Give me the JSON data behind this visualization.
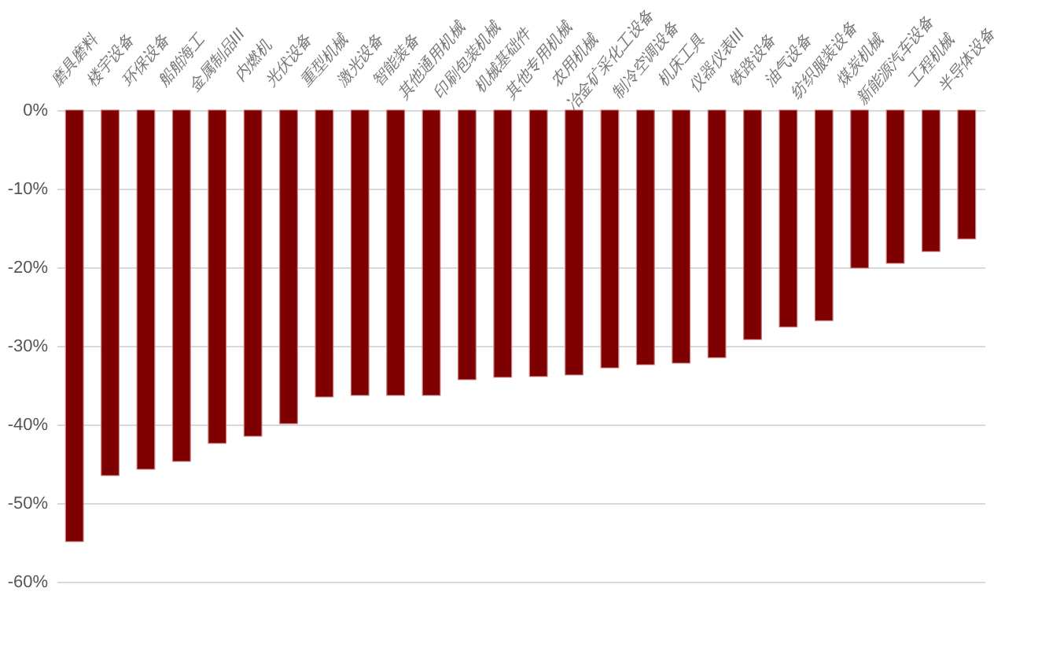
{
  "chart_data": {
    "type": "bar",
    "categories": [
      "磨具磨料",
      "楼宇设备",
      "环保设备",
      "船舶海工",
      "金属制品III",
      "内燃机",
      "光伏设备",
      "重型机械",
      "激光设备",
      "智能装备",
      "其他通用机械",
      "印刷包装机械",
      "机械基础件",
      "其他专用机械",
      "农用机械",
      "冶金矿采化工设备",
      "制冷空调设备",
      "机床工具",
      "仪器仪表III",
      "铁路设备",
      "油气设备",
      "纺织服装设备",
      "煤炭机械",
      "新能源汽车设备",
      "工程机械",
      "半导体设备"
    ],
    "values": [
      -54.9,
      -46.5,
      -45.7,
      -44.7,
      -42.4,
      -41.5,
      -39.9,
      -36.5,
      -36.3,
      -36.3,
      -36.3,
      -34.3,
      -34.0,
      -33.9,
      -33.7,
      -32.8,
      -32.4,
      -32.2,
      -31.5,
      -29.2,
      -27.6,
      -26.8,
      -20.1,
      -19.5,
      -18.0,
      -16.4
    ],
    "color": "#7f0000",
    "ylim": [
      -60,
      0
    ],
    "yticks": [
      {
        "value": -60,
        "label": "-60%"
      },
      {
        "value": -50,
        "label": "-50%"
      },
      {
        "value": -40,
        "label": "-40%"
      },
      {
        "value": -30,
        "label": "-30%"
      },
      {
        "value": -20,
        "label": "-20%"
      },
      {
        "value": -10,
        "label": "-10%"
      },
      {
        "value": 0,
        "label": "0%"
      }
    ],
    "grid": "y"
  }
}
